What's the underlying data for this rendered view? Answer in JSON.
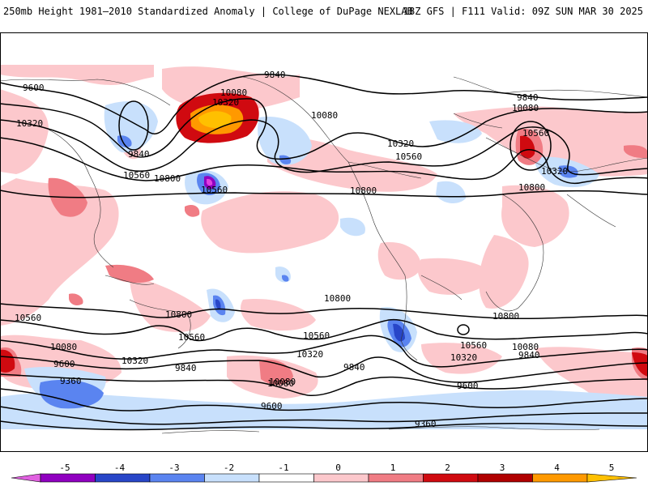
{
  "header": {
    "title_left": "250mb Height 1981–2010 Standardized Anomaly | College of DuPage NEXLAB",
    "title_right": "18Z GFS | F111 Valid: 09Z SUN MAR 30 2025"
  },
  "colors": {
    "ocean_bg": "#ffffff",
    "light_pink": "#fcc8cc",
    "mid_pink": "#f07c84",
    "red": "#d00a10",
    "dark_red": "#b00000",
    "orange": "#ff9900",
    "yellow": "#ffc000",
    "light_blue": "#c8e0fc",
    "mid_blue": "#5a84f0",
    "dark_blue": "#2846c8",
    "purple": "#9000c0",
    "magenta": "#e040e0"
  },
  "contour_labels": [
    {
      "text": "9600"
    },
    {
      "text": "9840"
    },
    {
      "text": "10320"
    },
    {
      "text": "10080"
    },
    {
      "text": "10320"
    },
    {
      "text": "9840"
    },
    {
      "text": "10560"
    },
    {
      "text": "10800"
    },
    {
      "text": "10560"
    },
    {
      "text": "10080"
    },
    {
      "text": "10320"
    },
    {
      "text": "10560"
    },
    {
      "text": "10800"
    },
    {
      "text": "9840"
    },
    {
      "text": "10080"
    },
    {
      "text": "10560"
    },
    {
      "text": "10320"
    },
    {
      "text": "10800"
    },
    {
      "text": "10560"
    },
    {
      "text": "10800"
    },
    {
      "text": "10560"
    },
    {
      "text": "10320"
    },
    {
      "text": "10080"
    },
    {
      "text": "9600"
    },
    {
      "text": "9360"
    },
    {
      "text": "10800"
    },
    {
      "text": "10560"
    },
    {
      "text": "10320"
    },
    {
      "text": "10080"
    },
    {
      "text": "9840"
    },
    {
      "text": "9840"
    },
    {
      "text": "9600"
    },
    {
      "text": "9360"
    },
    {
      "text": "10800"
    },
    {
      "text": "10560"
    },
    {
      "text": "10320"
    },
    {
      "text": "10080"
    },
    {
      "text": "9840"
    },
    {
      "text": "9600"
    },
    {
      "text": "10080"
    }
  ],
  "colorbar": {
    "ticks": [
      "-5",
      "-4",
      "-3",
      "-2",
      "-1",
      "0",
      "1",
      "2",
      "3",
      "4",
      "5"
    ],
    "colors": [
      "#e060e0",
      "#9000c0",
      "#2846c8",
      "#5a84f0",
      "#c8e0fc",
      "#ffffff",
      "#fcc8cc",
      "#f07c84",
      "#d00a10",
      "#b00000",
      "#ff9900"
    ]
  }
}
